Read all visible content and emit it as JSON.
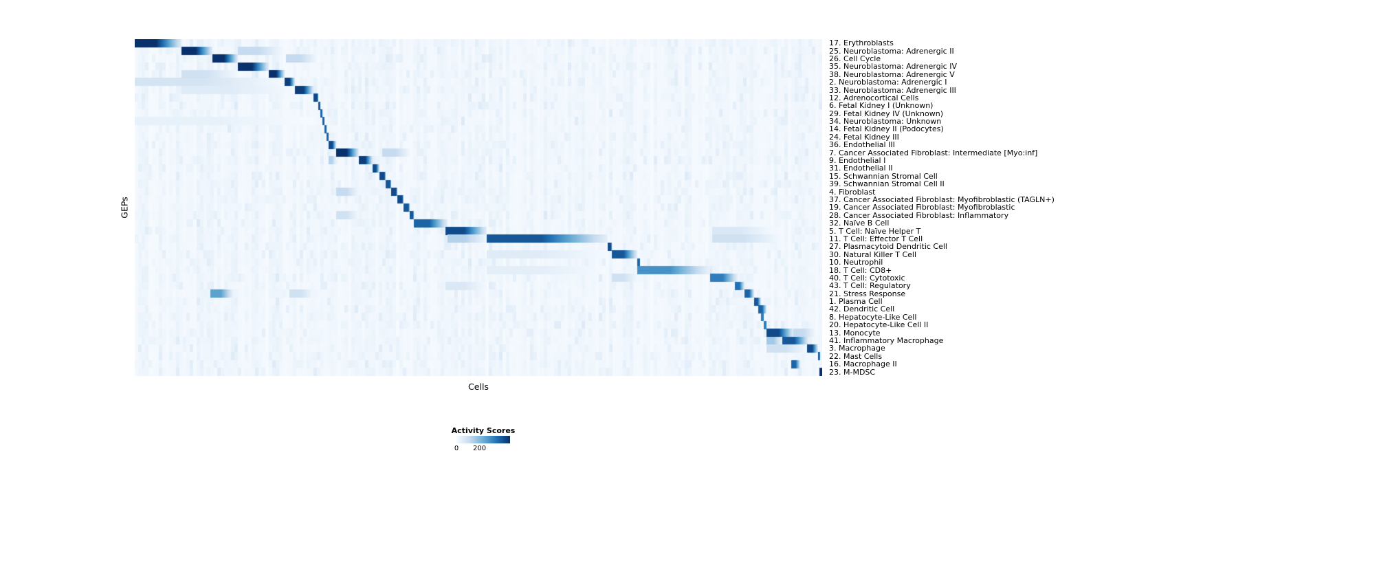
{
  "figure": {
    "ylabel": "GEPs",
    "xlabel": "Cells"
  },
  "legend": {
    "title": "Activity Scores",
    "tick_min": "0",
    "tick_mid": "200"
  },
  "chart_data": {
    "type": "heatmap",
    "title": "",
    "xlabel": "Cells",
    "ylabel": "GEPs",
    "colormap": "Blues",
    "colorbar_ticks": [
      0,
      200
    ],
    "value_range": [
      0,
      200
    ],
    "legend_title": "Activity Scores",
    "grid": false,
    "colormap_stops": [
      {
        "pos": 0.0,
        "color": "#f7fbff"
      },
      {
        "pos": 0.25,
        "color": "#c6dbef"
      },
      {
        "pos": 0.5,
        "color": "#6baed6"
      },
      {
        "pos": 0.75,
        "color": "#2171b5"
      },
      {
        "pos": 1.0,
        "color": "#08306b"
      }
    ],
    "rows": [
      {
        "label": "17. Erythroblasts",
        "start": 0.0,
        "end": 0.068,
        "intensity": 1.0
      },
      {
        "label": "25. Neuroblastoma: Adrenergic II",
        "start": 0.068,
        "end": 0.113,
        "intensity": 1.0,
        "extra": [
          [
            0.15,
            0.215,
            0.25
          ]
        ]
      },
      {
        "label": "26. Cell Cycle",
        "start": 0.113,
        "end": 0.15,
        "intensity": 1.0,
        "extra": [
          [
            0.22,
            0.265,
            0.25
          ]
        ]
      },
      {
        "label": "35. Neuroblastoma: Adrenergic IV",
        "start": 0.15,
        "end": 0.195,
        "intensity": 1.0
      },
      {
        "label": "38. Neuroblastoma: Adrenergic V",
        "start": 0.195,
        "end": 0.218,
        "intensity": 1.0,
        "extra": [
          [
            0.068,
            0.15,
            0.2
          ]
        ]
      },
      {
        "label": "2. Neuroblastoma: Adrenergic I",
        "start": 0.218,
        "end": 0.233,
        "intensity": 0.95,
        "extra": [
          [
            0.0,
            0.218,
            0.18
          ]
        ]
      },
      {
        "label": "33. Neuroblastoma: Adrenergic III",
        "start": 0.233,
        "end": 0.26,
        "intensity": 0.95,
        "extra": [
          [
            0.068,
            0.233,
            0.12
          ]
        ]
      },
      {
        "label": "12. Adrenocortical Cells",
        "start": 0.26,
        "end": 0.267,
        "intensity": 0.9
      },
      {
        "label": "6. Fetal Kidney I (Unknown)",
        "start": 0.267,
        "end": 0.27,
        "intensity": 0.85
      },
      {
        "label": "29. Fetal Kidney IV (Unknown)",
        "start": 0.27,
        "end": 0.273,
        "intensity": 0.8
      },
      {
        "label": "34. Neuroblastoma: Unknown",
        "start": 0.273,
        "end": 0.276,
        "intensity": 0.8,
        "extra": [
          [
            0.0,
            0.26,
            0.08
          ]
        ]
      },
      {
        "label": "14. Fetal Kidney II (Podocytes)",
        "start": 0.276,
        "end": 0.279,
        "intensity": 0.8
      },
      {
        "label": "24. Fetal Kidney III",
        "start": 0.279,
        "end": 0.282,
        "intensity": 0.8
      },
      {
        "label": "36. Endothelial III",
        "start": 0.282,
        "end": 0.293,
        "intensity": 0.9
      },
      {
        "label": "7. Cancer Associated Fibroblast: Intermediate [Myo:inf]",
        "start": 0.293,
        "end": 0.326,
        "intensity": 1.0,
        "extra": [
          [
            0.36,
            0.4,
            0.25
          ]
        ]
      },
      {
        "label": "9. Endothelial I",
        "start": 0.326,
        "end": 0.346,
        "intensity": 0.95,
        "extra": [
          [
            0.282,
            0.293,
            0.3
          ]
        ]
      },
      {
        "label": "31. Endothelial II",
        "start": 0.346,
        "end": 0.356,
        "intensity": 0.9
      },
      {
        "label": "15. Schwannian Stromal Cell",
        "start": 0.356,
        "end": 0.365,
        "intensity": 0.9
      },
      {
        "label": "39. Schwannian Stromal Cell II",
        "start": 0.365,
        "end": 0.373,
        "intensity": 0.85
      },
      {
        "label": "4. Fibroblast",
        "start": 0.373,
        "end": 0.382,
        "intensity": 0.9,
        "extra": [
          [
            0.293,
            0.326,
            0.25
          ]
        ]
      },
      {
        "label": "37. Cancer Associated Fibroblast: Myofibroblastic (TAGLN+)",
        "start": 0.382,
        "end": 0.391,
        "intensity": 0.9
      },
      {
        "label": "19. Cancer Associated Fibroblast: Myofibroblastic",
        "start": 0.391,
        "end": 0.4,
        "intensity": 0.85
      },
      {
        "label": "28. Cancer Associated Fibroblast: Inflammatory",
        "start": 0.4,
        "end": 0.406,
        "intensity": 0.85,
        "extra": [
          [
            0.293,
            0.326,
            0.2
          ]
        ]
      },
      {
        "label": "32. Naïve B Cell",
        "start": 0.406,
        "end": 0.455,
        "intensity": 0.8
      },
      {
        "label": "5. T Cell: Naïve Helper T",
        "start": 0.452,
        "end": 0.512,
        "intensity": 0.9,
        "extra": [
          [
            0.84,
            0.93,
            0.15
          ]
        ]
      },
      {
        "label": "11. T Cell: Effector T Cell",
        "start": 0.512,
        "end": 0.688,
        "intensity": 0.85,
        "extra": [
          [
            0.455,
            0.512,
            0.3
          ],
          [
            0.84,
            0.94,
            0.2
          ]
        ]
      },
      {
        "label": "27. Plasmacytoid Dendritic Cell",
        "start": 0.688,
        "end": 0.694,
        "intensity": 0.9
      },
      {
        "label": "30. Natural Killer T Cell",
        "start": 0.694,
        "end": 0.731,
        "intensity": 0.85,
        "extra": [
          [
            0.512,
            0.688,
            0.12
          ]
        ]
      },
      {
        "label": "10. Neutrophil",
        "start": 0.731,
        "end": 0.735,
        "intensity": 0.8
      },
      {
        "label": "18. T Cell: CD8+",
        "start": 0.731,
        "end": 0.837,
        "intensity": 0.62,
        "extra": [
          [
            0.512,
            0.688,
            0.1
          ]
        ]
      },
      {
        "label": "40. T Cell: Cytotoxic",
        "start": 0.837,
        "end": 0.877,
        "intensity": 0.7,
        "extra": [
          [
            0.694,
            0.731,
            0.2
          ]
        ]
      },
      {
        "label": "43. T Cell: Regulatory",
        "start": 0.873,
        "end": 0.887,
        "intensity": 0.75,
        "extra": [
          [
            0.452,
            0.512,
            0.15
          ]
        ]
      },
      {
        "label": "21. Stress Response",
        "start": 0.887,
        "end": 0.901,
        "intensity": 0.8,
        "extra": [
          [
            0.11,
            0.143,
            0.55
          ],
          [
            0.225,
            0.26,
            0.2
          ]
        ]
      },
      {
        "label": "1. Plasma Cell",
        "start": 0.901,
        "end": 0.911,
        "intensity": 0.85
      },
      {
        "label": "42. Dendritic Cell",
        "start": 0.907,
        "end": 0.919,
        "intensity": 0.8
      },
      {
        "label": "8. Hepatocyte-Like Cell",
        "start": 0.911,
        "end": 0.915,
        "intensity": 0.7
      },
      {
        "label": "20. Hepatocyte-Like Cell II",
        "start": 0.915,
        "end": 0.919,
        "intensity": 0.7
      },
      {
        "label": "13. Monocyte",
        "start": 0.919,
        "end": 0.958,
        "intensity": 0.9,
        "extra": [
          [
            0.958,
            0.99,
            0.25
          ]
        ]
      },
      {
        "label": "41. Inflammatory Macrophage",
        "start": 0.942,
        "end": 0.98,
        "intensity": 0.85,
        "extra": [
          [
            0.919,
            0.942,
            0.35
          ]
        ]
      },
      {
        "label": "3. Macrophage",
        "start": 0.978,
        "end": 0.994,
        "intensity": 0.9,
        "extra": [
          [
            0.919,
            0.978,
            0.2
          ]
        ]
      },
      {
        "label": "22. Mast Cells",
        "start": 0.994,
        "end": 0.9965,
        "intensity": 0.85
      },
      {
        "label": "16. Macrophage II",
        "start": 0.955,
        "end": 0.968,
        "intensity": 0.8
      },
      {
        "label": "23. M-MDSC",
        "start": 0.9965,
        "end": 1.0,
        "intensity": 1.0
      }
    ]
  }
}
